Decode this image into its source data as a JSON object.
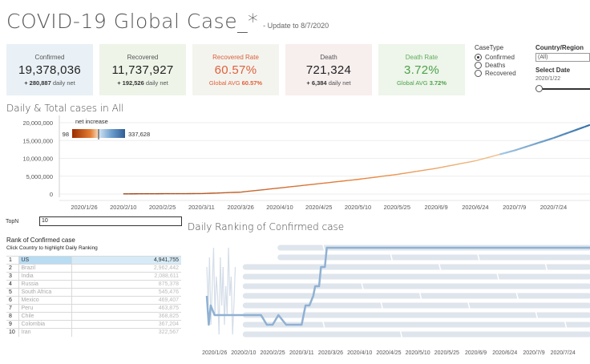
{
  "header": {
    "title": "COVID-19 Global Case_*",
    "update": "- Update to 8/7/2020"
  },
  "kpis": {
    "confirmed": {
      "label": "Confirmed",
      "value": "19,378,036",
      "sub_bold": "+ 280,887",
      "sub_light": "daily net"
    },
    "recovered": {
      "label": "Recovered",
      "value": "11,737,927",
      "sub_bold": "+ 192,526",
      "sub_light": "daily net"
    },
    "recovered_rate": {
      "label": "Recovered Rate",
      "value": "60.57%",
      "sub_light": "Global AVG",
      "sub_bold": "60.57%"
    },
    "death": {
      "label": "Death",
      "value": "721,324",
      "sub_bold": "+ 6,384",
      "sub_light": "daily net"
    },
    "death_rate": {
      "label": "Death Rate",
      "value": "3.72%",
      "sub_light": "Global AVG",
      "sub_bold": "3.72%"
    }
  },
  "casetype": {
    "heading": "CaseType",
    "options": [
      "Confirmed",
      "Deaths",
      "Recovered"
    ],
    "selected": "Confirmed"
  },
  "filters": {
    "country_heading": "Country/Region",
    "country_value": "(All)",
    "date_heading": "Select Date",
    "date_value": "2020/1/22",
    "slider_position": 0
  },
  "total_section": {
    "title": "Daily & Total cases in All",
    "legend_title": "net increase",
    "legend_min": "98",
    "legend_max": "337,628"
  },
  "topn": {
    "label": "TopN",
    "value": "10"
  },
  "ranking_table": {
    "title": "Rank of Confirmed case",
    "subtitle": "Click Country to highlight Daily Ranking",
    "rows": [
      {
        "rank": "1",
        "country": "US",
        "value": "4,941,755"
      },
      {
        "rank": "2",
        "country": "Brazil",
        "value": "2,962,442"
      },
      {
        "rank": "3",
        "country": "India",
        "value": "2,088,611"
      },
      {
        "rank": "4",
        "country": "Russia",
        "value": "875,378"
      },
      {
        "rank": "5",
        "country": "South Africa",
        "value": "545,476"
      },
      {
        "rank": "6",
        "country": "Mexico",
        "value": "469,407"
      },
      {
        "rank": "7",
        "country": "Peru",
        "value": "463,875"
      },
      {
        "rank": "8",
        "country": "Chile",
        "value": "368,825"
      },
      {
        "rank": "9",
        "country": "Colombia",
        "value": "367,204"
      },
      {
        "rank": "10",
        "country": "Iran",
        "value": "322,567"
      }
    ]
  },
  "rank_section": {
    "title": "Daily Ranking of Confirmed case"
  },
  "colors": {
    "accent_blue": "#4f86b8",
    "orange": "#e07030",
    "kpi_confirmed_bg": "#e9f1f6",
    "kpi_recovered_bg": "#eef4e8",
    "kpi_recovered_rate_bg": "#f4f4ef",
    "kpi_death_bg": "#f7eeee",
    "kpi_death_rate_bg": "#eef5ea",
    "highlight_row": "#b8dcf2"
  },
  "chart_data": [
    {
      "type": "line",
      "title": "Daily & Total cases in All",
      "ylim": [
        0,
        20000000
      ],
      "y_ticks": [
        "20,000,000",
        "15,000,000",
        "10,000,000",
        "5,000,000",
        "0"
      ],
      "x_ticks": [
        "2020/1/26",
        "2020/2/10",
        "2020/2/25",
        "2020/3/11",
        "2020/3/26",
        "2020/4/10",
        "2020/4/25",
        "2020/5/10",
        "2020/5/25",
        "2020/6/9",
        "2020/6/24",
        "2020/7/9",
        "2020/7/24"
      ],
      "x": [
        "2020/1/22",
        "2020/2/10",
        "2020/3/11",
        "2020/3/26",
        "2020/4/10",
        "2020/4/25",
        "2020/5/10",
        "2020/5/25",
        "2020/6/9",
        "2020/6/24",
        "2020/7/9",
        "2020/7/24",
        "2020/8/7"
      ],
      "values": [
        0,
        43000,
        126000,
        530000,
        1700000,
        2900000,
        4100000,
        5500000,
        7200000,
        9300000,
        12200000,
        15700000,
        19378036
      ],
      "color_scale": {
        "min": 98,
        "max": 337628
      }
    },
    {
      "type": "line",
      "title": "Daily Ranking of Confirmed case",
      "x_ticks": [
        "2020/1/26",
        "2020/2/10",
        "2020/2/25",
        "2020/3/11",
        "2020/3/26",
        "2020/4/10",
        "2020/4/25",
        "2020/5/10",
        "2020/5/25",
        "2020/6/9",
        "2020/6/24",
        "2020/7/9",
        "2020/7/24"
      ],
      "highlighted_series": "US",
      "highlighted_ranks": [
        [
          "2020/1/22",
          6
        ],
        [
          "2020/1/23",
          9
        ],
        [
          "2020/1/24",
          7
        ],
        [
          "2020/1/26",
          8
        ],
        [
          "2020/1/31",
          8
        ],
        [
          "2020/2/7",
          8
        ],
        [
          "2020/2/10",
          8
        ],
        [
          "2020/2/15",
          8
        ],
        [
          "2020/2/19",
          8
        ],
        [
          "2020/2/22",
          9
        ],
        [
          "2020/2/25",
          9
        ],
        [
          "2020/2/28",
          8
        ],
        [
          "2020/3/3",
          9
        ],
        [
          "2020/3/8",
          9
        ],
        [
          "2020/3/11",
          9
        ],
        [
          "2020/3/13",
          7
        ],
        [
          "2020/3/15",
          7
        ],
        [
          "2020/3/17",
          6
        ],
        [
          "2020/3/18",
          5
        ],
        [
          "2020/3/20",
          5
        ],
        [
          "2020/3/21",
          3
        ],
        [
          "2020/3/23",
          3
        ],
        [
          "2020/3/24",
          1
        ],
        [
          "2020/8/7",
          1
        ]
      ]
    }
  ]
}
